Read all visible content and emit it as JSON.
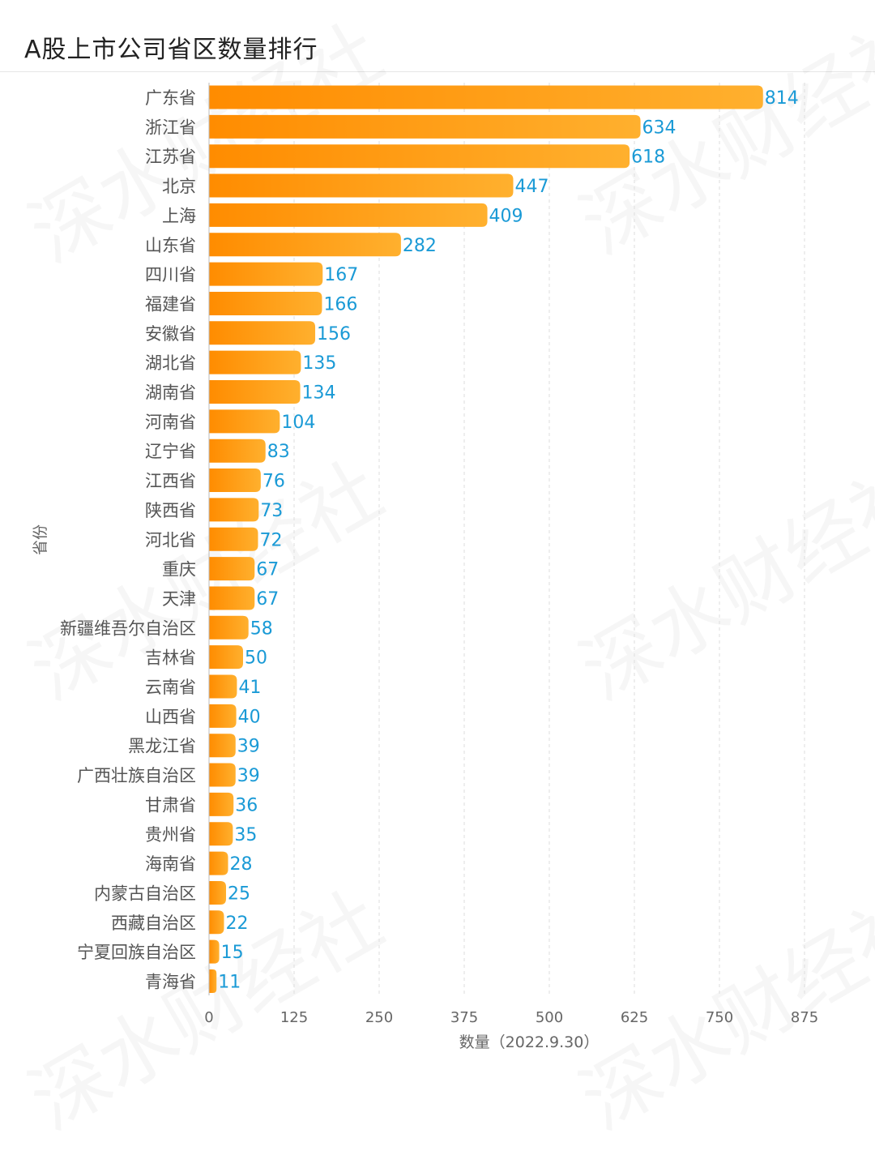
{
  "title": "A股上市公司省区数量排行",
  "watermark_text": "深水财经社",
  "chart_data": {
    "type": "bar",
    "orientation": "horizontal",
    "title": "A股上市公司省区数量排行",
    "xlabel": "数量（2022.9.30）",
    "ylabel": "省份",
    "xlim": [
      0,
      875
    ],
    "xticks": [
      0,
      125,
      250,
      375,
      500,
      625,
      750,
      875
    ],
    "grid": true,
    "categories": [
      "广东省",
      "浙江省",
      "江苏省",
      "北京",
      "上海",
      "山东省",
      "四川省",
      "福建省",
      "安徽省",
      "湖北省",
      "湖南省",
      "河南省",
      "辽宁省",
      "江西省",
      "陕西省",
      "河北省",
      "重庆",
      "天津",
      "新疆维吾尔自治区",
      "吉林省",
      "云南省",
      "山西省",
      "黑龙江省",
      "广西壮族自治区",
      "甘肃省",
      "贵州省",
      "海南省",
      "内蒙古自治区",
      "西藏自治区",
      "宁夏回族自治区",
      "青海省"
    ],
    "values": [
      814,
      634,
      618,
      447,
      409,
      282,
      167,
      166,
      156,
      135,
      134,
      104,
      83,
      76,
      73,
      72,
      67,
      67,
      58,
      50,
      41,
      40,
      39,
      39,
      36,
      35,
      28,
      25,
      22,
      15,
      11
    ],
    "bar_color_start": "#ff8c00",
    "bar_color_end": "#ffb02e",
    "label_color": "#1a9ad6"
  }
}
